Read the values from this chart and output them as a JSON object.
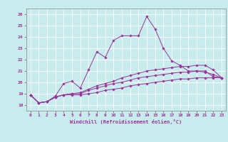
{
  "xlabel": "Windchill (Refroidissement éolien,°C)",
  "background_color": "#c8ecee",
  "line_color": "#993399",
  "grid_color": "#ffffff",
  "xlim": [
    -0.5,
    23.5
  ],
  "ylim": [
    17.5,
    26.5
  ],
  "yticks": [
    18,
    19,
    20,
    21,
    22,
    23,
    24,
    25,
    26
  ],
  "xticks": [
    0,
    1,
    2,
    3,
    4,
    5,
    6,
    7,
    8,
    9,
    10,
    11,
    12,
    13,
    14,
    15,
    16,
    17,
    18,
    19,
    20,
    21,
    22,
    23
  ],
  "xtick_labels": [
    "0",
    "1",
    "2",
    "3",
    "4",
    "5",
    "6",
    "7",
    "8",
    "9",
    "10",
    "11",
    "12",
    "13",
    "14",
    "15",
    "16",
    "17",
    "18",
    "19",
    "20",
    "21",
    "22",
    "23"
  ],
  "series": [
    [
      18.9,
      18.2,
      18.3,
      18.8,
      19.9,
      20.1,
      19.5,
      21.1,
      22.7,
      22.2,
      23.7,
      24.1,
      24.1,
      24.1,
      25.8,
      24.7,
      23.0,
      21.9,
      21.5,
      21.0,
      21.0,
      21.0,
      20.5,
      20.4
    ],
    [
      18.9,
      18.2,
      18.3,
      18.7,
      18.9,
      19.0,
      19.1,
      19.4,
      19.7,
      19.9,
      20.1,
      20.4,
      20.6,
      20.8,
      21.0,
      21.1,
      21.2,
      21.3,
      21.4,
      21.4,
      21.5,
      21.5,
      21.1,
      20.4
    ],
    [
      18.9,
      18.2,
      18.3,
      18.7,
      18.9,
      19.0,
      19.0,
      19.3,
      19.5,
      19.7,
      19.9,
      20.0,
      20.2,
      20.4,
      20.5,
      20.6,
      20.7,
      20.8,
      20.9,
      20.9,
      21.0,
      20.9,
      20.7,
      20.4
    ],
    [
      18.9,
      18.2,
      18.3,
      18.7,
      18.9,
      18.9,
      18.9,
      19.0,
      19.1,
      19.3,
      19.4,
      19.5,
      19.7,
      19.8,
      19.9,
      20.0,
      20.1,
      20.2,
      20.3,
      20.3,
      20.4,
      20.4,
      20.4,
      20.4
    ]
  ]
}
